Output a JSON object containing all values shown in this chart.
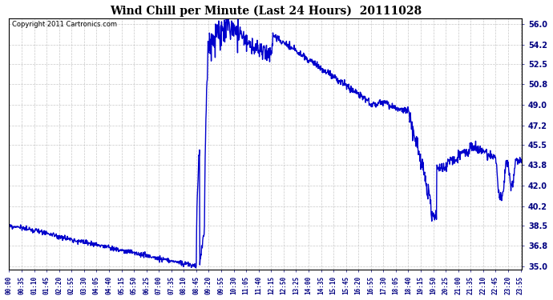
{
  "title": "Wind Chill per Minute (Last 24 Hours)  20111028",
  "copyright": "Copyright 2011 Cartronics.com",
  "line_color": "#0000cc",
  "background_color": "#ffffff",
  "grid_color": "#bbbbbb",
  "yticks": [
    35.0,
    36.8,
    38.5,
    40.2,
    42.0,
    43.8,
    45.5,
    47.2,
    49.0,
    50.8,
    52.5,
    54.2,
    56.0
  ],
  "ylim": [
    34.7,
    56.5
  ],
  "xtick_labels": [
    "00:00",
    "00:35",
    "01:10",
    "01:45",
    "02:20",
    "02:55",
    "03:30",
    "04:05",
    "04:40",
    "05:15",
    "05:50",
    "06:25",
    "07:00",
    "07:35",
    "08:10",
    "08:45",
    "09:20",
    "09:55",
    "10:30",
    "11:05",
    "11:40",
    "12:15",
    "12:50",
    "13:25",
    "14:00",
    "14:35",
    "15:10",
    "15:45",
    "16:20",
    "16:55",
    "17:30",
    "18:05",
    "18:40",
    "19:15",
    "19:50",
    "20:25",
    "21:00",
    "21:35",
    "22:10",
    "22:45",
    "23:20",
    "23:55"
  ],
  "line_width": 1.0,
  "figsize": [
    6.9,
    3.75
  ],
  "dpi": 100
}
